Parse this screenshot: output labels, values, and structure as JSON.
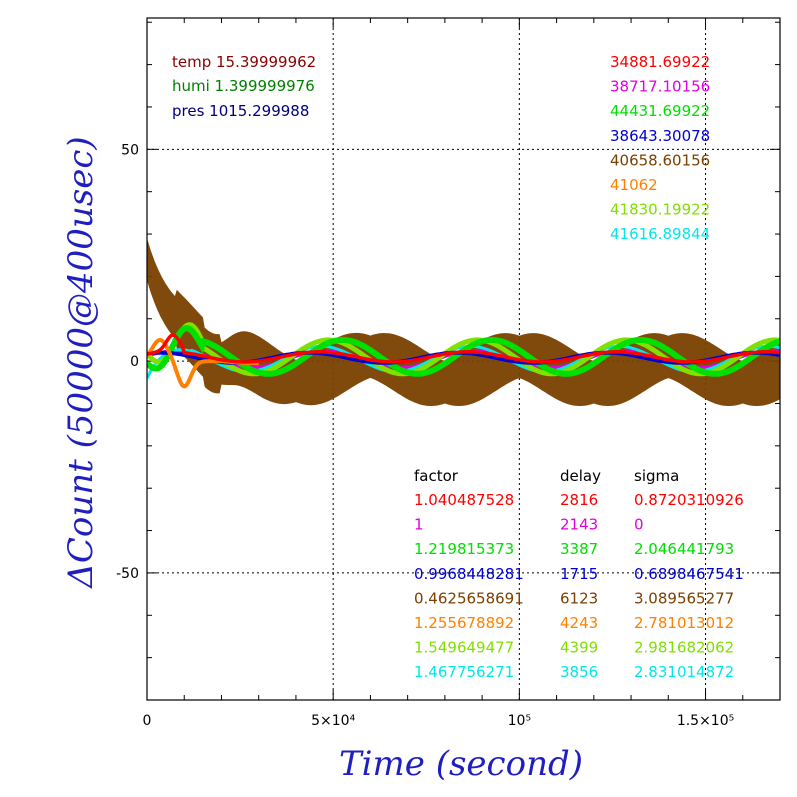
{
  "chart_data": {
    "type": "line",
    "xlabel": "Time (second)",
    "ylabel": "ΔCount (50000@400usec)",
    "xlim": [
      0,
      170000
    ],
    "ylim": [
      -80,
      81
    ],
    "grid": "dotted",
    "x_ticks": [
      {
        "value": 0,
        "label": "0"
      },
      {
        "value": 50000,
        "label": "5×10⁴"
      },
      {
        "value": 100000,
        "label": "10⁵"
      },
      {
        "value": 150000,
        "label": "1.5×10⁵"
      }
    ],
    "y_ticks": [
      {
        "value": 50,
        "label": "50"
      },
      {
        "value": 0,
        "label": "0"
      },
      {
        "value": -50,
        "label": "-50"
      }
    ],
    "env": [
      {
        "label": "temp 15.39999962",
        "color": "#8b0000"
      },
      {
        "label": "humi 1.399999976",
        "color": "#008000"
      },
      {
        "label": "pres 1015.299988",
        "color": "#00007f"
      }
    ],
    "table_headers": [
      "factor",
      "delay",
      "sigma"
    ],
    "series": [
      {
        "color": "#ff0000",
        "baseline": "34881.69922",
        "factor": "1.040487528",
        "delay": "2816",
        "sigma": "0.8720310926"
      },
      {
        "color": "#e000e0",
        "baseline": "38717.10156",
        "factor": "1",
        "delay": "2143",
        "sigma": "0"
      },
      {
        "color": "#00e000",
        "baseline": "44431.69922",
        "factor": "1.219815373",
        "delay": "3387",
        "sigma": "2.046441793"
      },
      {
        "color": "#0000d0",
        "baseline": "38643.30078",
        "factor": "0.9968448281",
        "delay": "1715",
        "sigma": "0.6898467541"
      },
      {
        "color": "#7a4000",
        "baseline": "40658.60156",
        "factor": "0.4625658691",
        "delay": "6123",
        "sigma": "3.089565277"
      },
      {
        "color": "#ff8000",
        "baseline": "41062",
        "factor": "1.255678892",
        "delay": "4243",
        "sigma": "2.781013012"
      },
      {
        "color": "#80e000",
        "baseline": "41830.19922",
        "factor": "1.549649477",
        "delay": "4399",
        "sigma": "2.981682062"
      },
      {
        "color": "#00e8e8",
        "baseline": "41616.89844",
        "factor": "1.467756271",
        "delay": "3856",
        "sigma": "2.831014872"
      }
    ]
  }
}
